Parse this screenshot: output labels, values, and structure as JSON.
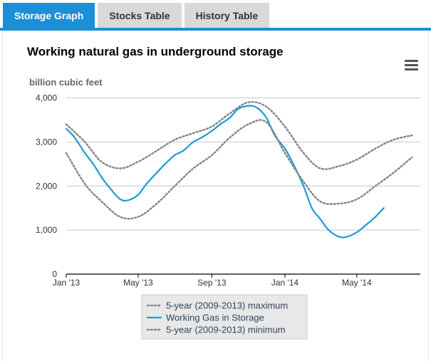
{
  "tabs": [
    {
      "label": "Storage Graph",
      "active": true
    },
    {
      "label": "Stocks Table",
      "active": false
    },
    {
      "label": "History Table",
      "active": false
    }
  ],
  "colors": {
    "accent": "#1c8fd6",
    "working_gas": "#1a9bd7",
    "range_lines": "#888888",
    "tab_inactive": "#d9d9d9"
  },
  "chart_menu_icon": "hamburger-menu-icon",
  "chart_data": {
    "type": "line",
    "title": "Working natural gas in underground storage",
    "ylabel": "billion cubic feet",
    "xlabel": "",
    "ylim": [
      0,
      4000
    ],
    "yticks": [
      0,
      1000,
      2000,
      3000,
      4000
    ],
    "ytick_labels": [
      "0",
      "1,000",
      "2,000",
      "3,000",
      "4,000"
    ],
    "xlim": [
      "2013-01-01",
      "2014-08-15"
    ],
    "xticks": [
      "2013-01-01",
      "2013-05-01",
      "2013-09-01",
      "2014-01-01",
      "2014-05-01"
    ],
    "xtick_labels": [
      "Jan '13",
      "May '13",
      "Sep '13",
      "Jan '14",
      "May '14"
    ],
    "grid": true,
    "legend_position": "bottom",
    "series": [
      {
        "name": "5-year (2009-2013) maximum",
        "style": "dotted",
        "points": [
          [
            "2013-01-01",
            3400
          ],
          [
            "2013-02-01",
            3000
          ],
          [
            "2013-03-01",
            2550
          ],
          [
            "2013-04-01",
            2400
          ],
          [
            "2013-05-01",
            2550
          ],
          [
            "2013-06-01",
            2800
          ],
          [
            "2013-07-01",
            3050
          ],
          [
            "2013-08-01",
            3200
          ],
          [
            "2013-09-01",
            3350
          ],
          [
            "2013-10-01",
            3650
          ],
          [
            "2013-11-01",
            3900
          ],
          [
            "2013-12-01",
            3800
          ],
          [
            "2014-01-01",
            3350
          ],
          [
            "2014-02-01",
            2750
          ],
          [
            "2014-03-01",
            2400
          ],
          [
            "2014-04-01",
            2450
          ],
          [
            "2014-05-01",
            2600
          ],
          [
            "2014-06-01",
            2850
          ],
          [
            "2014-07-01",
            3050
          ],
          [
            "2014-08-01",
            3150
          ]
        ]
      },
      {
        "name": "Working Gas in Storage",
        "style": "solid",
        "points": [
          [
            "2013-01-01",
            3300
          ],
          [
            "2013-01-15",
            3100
          ],
          [
            "2013-02-01",
            2750
          ],
          [
            "2013-02-15",
            2500
          ],
          [
            "2013-03-01",
            2200
          ],
          [
            "2013-03-15",
            1950
          ],
          [
            "2013-04-01",
            1700
          ],
          [
            "2013-04-15",
            1680
          ],
          [
            "2013-05-01",
            1800
          ],
          [
            "2013-05-15",
            2050
          ],
          [
            "2013-06-01",
            2300
          ],
          [
            "2013-06-15",
            2500
          ],
          [
            "2013-07-01",
            2700
          ],
          [
            "2013-07-15",
            2800
          ],
          [
            "2013-08-01",
            3000
          ],
          [
            "2013-08-15",
            3100
          ],
          [
            "2013-09-01",
            3250
          ],
          [
            "2013-09-15",
            3400
          ],
          [
            "2013-10-01",
            3550
          ],
          [
            "2013-10-15",
            3750
          ],
          [
            "2013-11-01",
            3820
          ],
          [
            "2013-11-15",
            3780
          ],
          [
            "2013-12-01",
            3550
          ],
          [
            "2013-12-15",
            3150
          ],
          [
            "2014-01-01",
            2850
          ],
          [
            "2014-01-15",
            2500
          ],
          [
            "2014-02-01",
            2000
          ],
          [
            "2014-02-15",
            1500
          ],
          [
            "2014-03-01",
            1250
          ],
          [
            "2014-03-15",
            1000
          ],
          [
            "2014-04-01",
            850
          ],
          [
            "2014-04-15",
            850
          ],
          [
            "2014-05-01",
            950
          ],
          [
            "2014-05-15",
            1100
          ],
          [
            "2014-06-01",
            1300
          ],
          [
            "2014-06-15",
            1500
          ]
        ]
      },
      {
        "name": "5-year (2009-2013) minimum",
        "style": "dotted",
        "points": [
          [
            "2013-01-01",
            2750
          ],
          [
            "2013-02-01",
            2050
          ],
          [
            "2013-03-01",
            1650
          ],
          [
            "2013-04-01",
            1300
          ],
          [
            "2013-05-01",
            1300
          ],
          [
            "2013-06-01",
            1600
          ],
          [
            "2013-07-01",
            2000
          ],
          [
            "2013-08-01",
            2400
          ],
          [
            "2013-09-01",
            2700
          ],
          [
            "2013-10-01",
            3100
          ],
          [
            "2013-11-01",
            3400
          ],
          [
            "2013-12-01",
            3450
          ],
          [
            "2014-01-01",
            2750
          ],
          [
            "2014-02-01",
            2100
          ],
          [
            "2014-03-01",
            1650
          ],
          [
            "2014-04-01",
            1600
          ],
          [
            "2014-05-01",
            1700
          ],
          [
            "2014-06-01",
            2000
          ],
          [
            "2014-07-01",
            2300
          ],
          [
            "2014-08-01",
            2650
          ]
        ]
      }
    ]
  }
}
